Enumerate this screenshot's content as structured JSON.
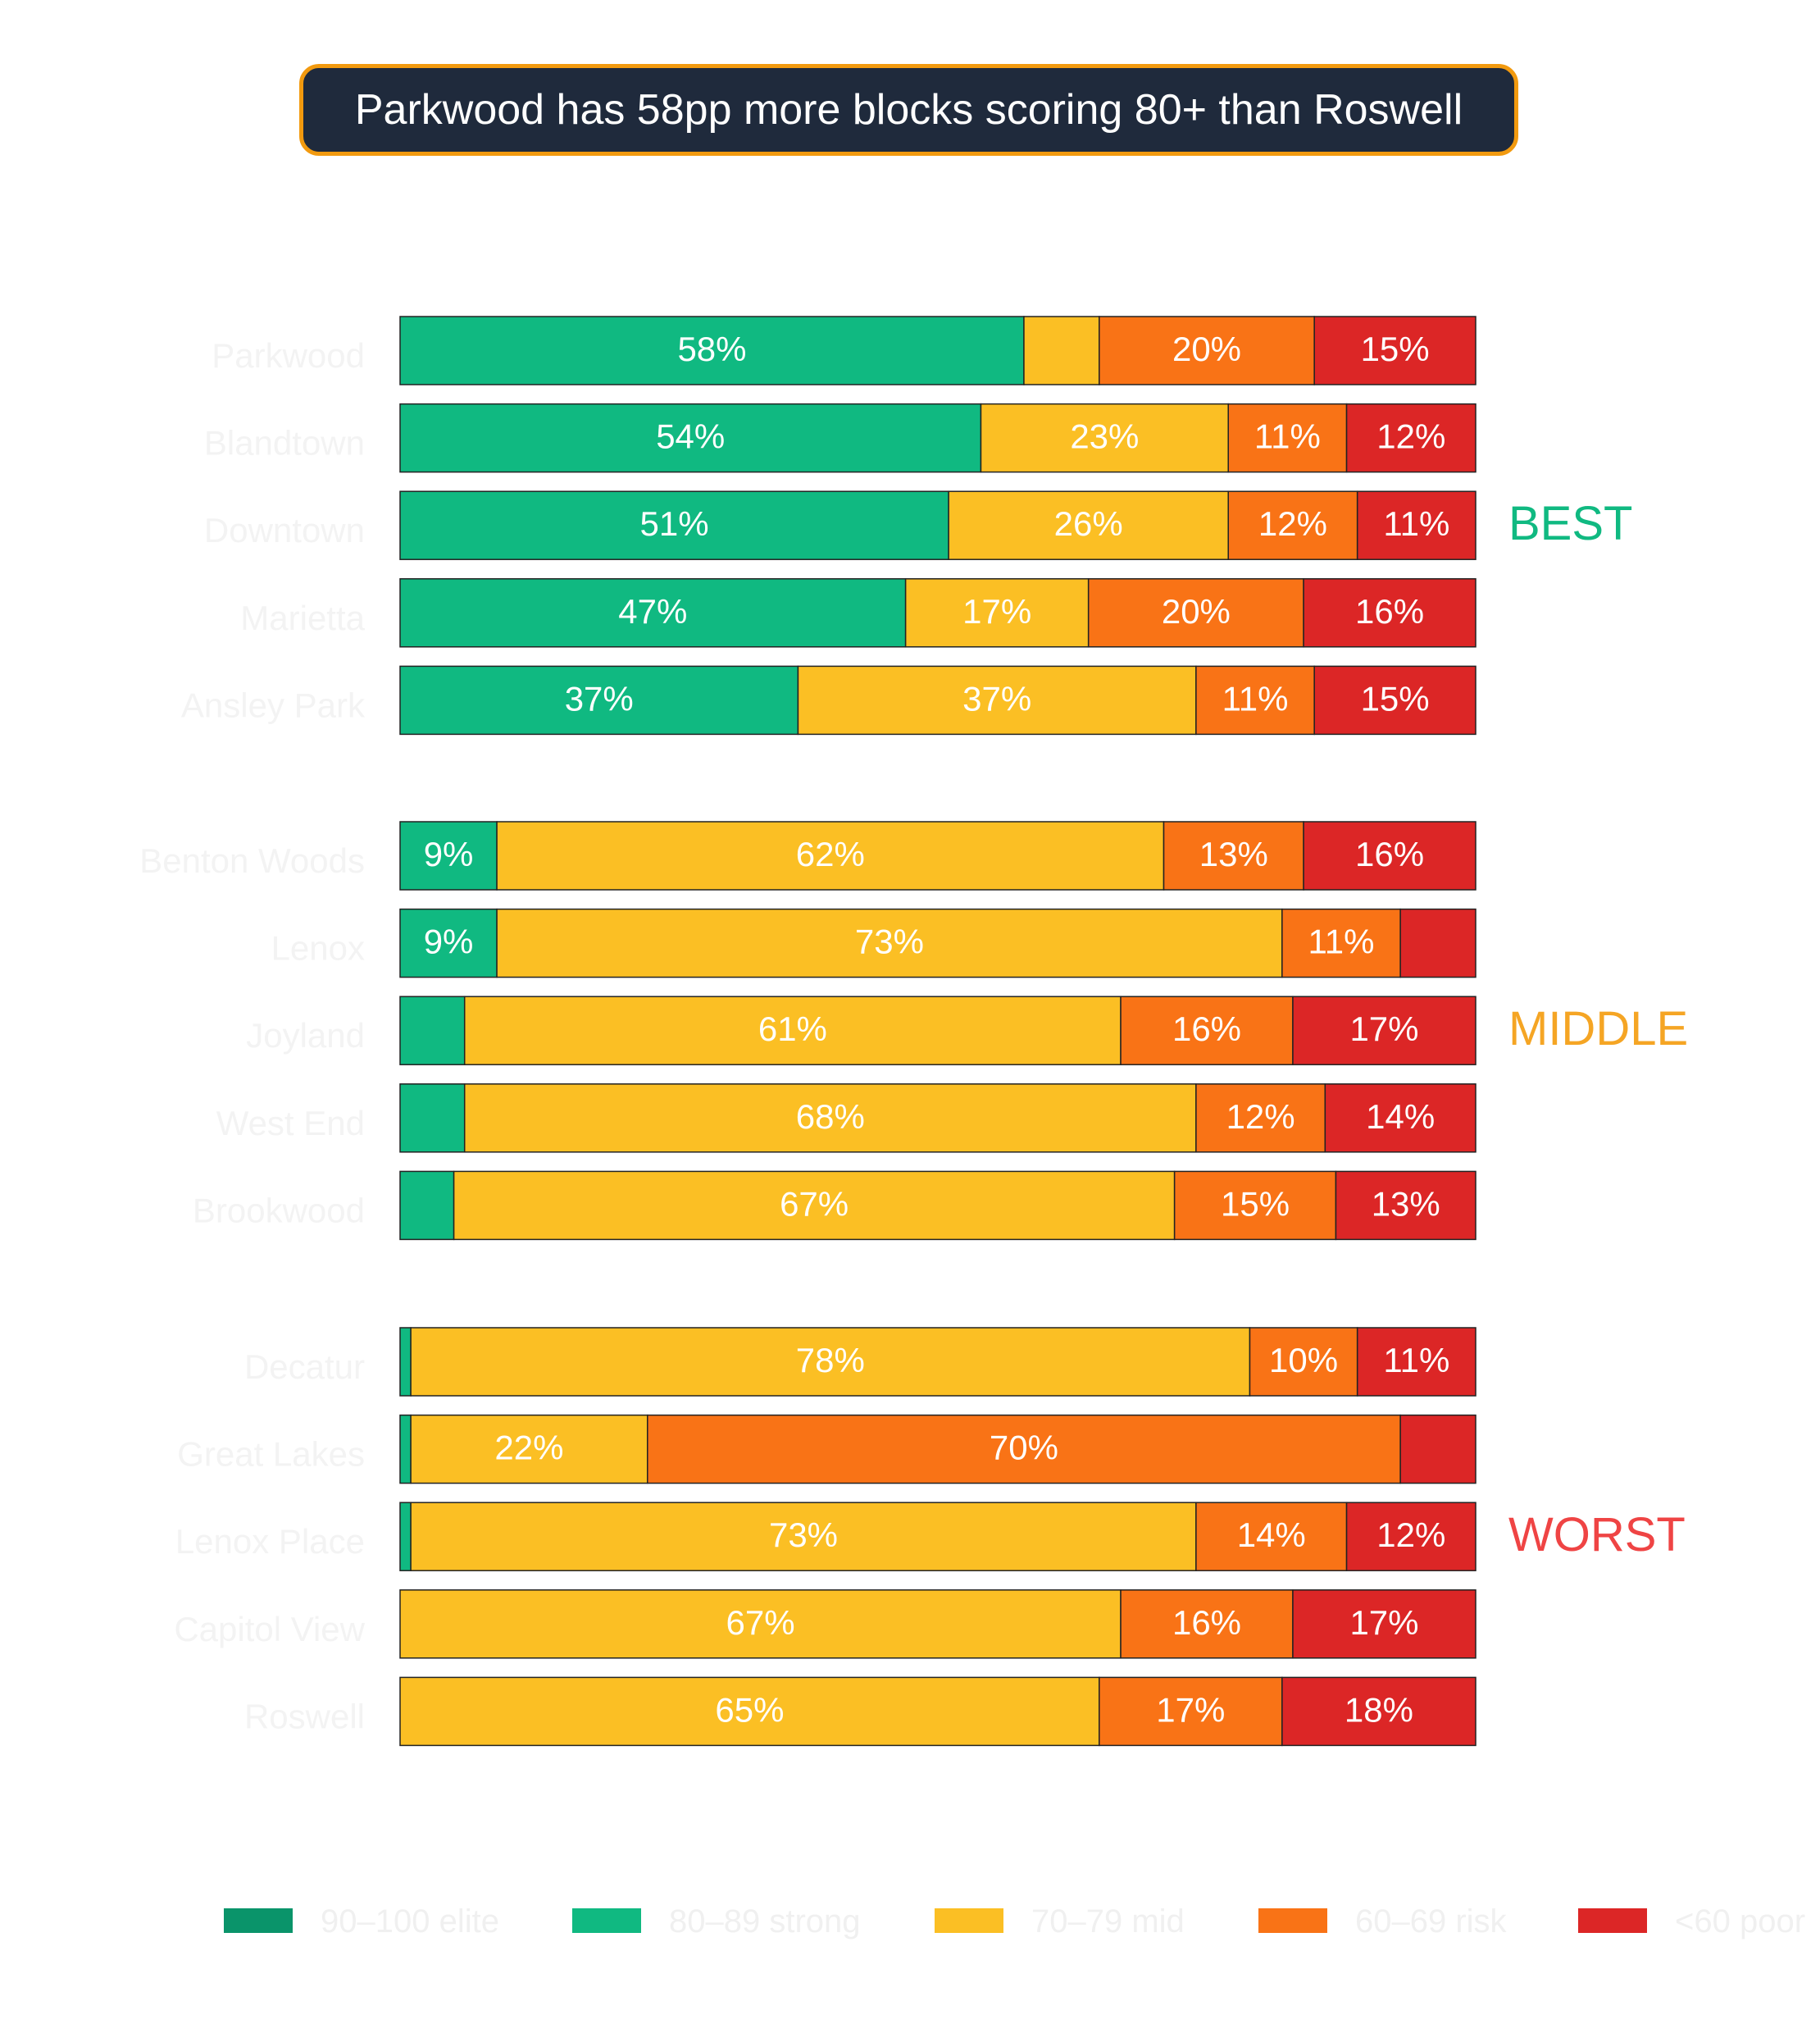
{
  "title": "Parkwood has 58pp more blocks scoring 80+ than Roswell",
  "chart_data": {
    "type": "bar",
    "orientation": "horizontal",
    "stacked": true,
    "xlim": [
      0,
      100
    ],
    "grid": false,
    "legend_placement": "bottom",
    "series": [
      {
        "name": "90–100 elite",
        "color": "#0a946a"
      },
      {
        "name": "80–89 strong",
        "color": "#10b981"
      },
      {
        "name": "70–79 mid",
        "color": "#fbbf24"
      },
      {
        "name": "60–69 risk",
        "color": "#f97316"
      },
      {
        "name": "<60 poor",
        "color": "#dc2626"
      }
    ],
    "groups": [
      {
        "label": "BEST",
        "color": "#10b981",
        "rows": [
          {
            "name": "Parkwood",
            "values": [
              0,
              58,
              7,
              20,
              15
            ],
            "labels": [
              "",
              "58%",
              "",
              "20%",
              "15%"
            ]
          },
          {
            "name": "Blandtown",
            "values": [
              0,
              54,
              23,
              11,
              12
            ],
            "labels": [
              "",
              "54%",
              "23%",
              "11%",
              "12%"
            ]
          },
          {
            "name": "Downtown",
            "values": [
              0,
              51,
              26,
              12,
              11
            ],
            "labels": [
              "",
              "51%",
              "26%",
              "12%",
              "11%"
            ]
          },
          {
            "name": "Marietta",
            "values": [
              0,
              47,
              17,
              20,
              16
            ],
            "labels": [
              "",
              "47%",
              "17%",
              "20%",
              "16%"
            ]
          },
          {
            "name": "Ansley Park",
            "values": [
              0,
              37,
              37,
              11,
              15
            ],
            "labels": [
              "",
              "37%",
              "37%",
              "11%",
              "15%"
            ]
          }
        ]
      },
      {
        "label": "MIDDLE",
        "color": "#f5a524",
        "rows": [
          {
            "name": "Benton Woods",
            "values": [
              0,
              9,
              62,
              13,
              16
            ],
            "labels": [
              "",
              "9%",
              "62%",
              "13%",
              "16%"
            ]
          },
          {
            "name": "Lenox",
            "values": [
              0,
              9,
              73,
              11,
              7
            ],
            "labels": [
              "",
              "9%",
              "73%",
              "11%",
              ""
            ]
          },
          {
            "name": "Joyland",
            "values": [
              0,
              6,
              61,
              16,
              17
            ],
            "labels": [
              "",
              "",
              "61%",
              "16%",
              "17%"
            ]
          },
          {
            "name": "West End",
            "values": [
              0,
              6,
              68,
              12,
              14
            ],
            "labels": [
              "",
              "",
              "68%",
              "12%",
              "14%"
            ]
          },
          {
            "name": "Brookwood",
            "values": [
              0,
              5,
              67,
              15,
              13
            ],
            "labels": [
              "",
              "",
              "67%",
              "15%",
              "13%"
            ]
          }
        ]
      },
      {
        "label": "WORST",
        "color": "#ef4444",
        "rows": [
          {
            "name": "Decatur",
            "values": [
              0,
              1,
              78,
              10,
              11
            ],
            "labels": [
              "",
              "",
              "78%",
              "10%",
              "11%"
            ]
          },
          {
            "name": "Great Lakes",
            "values": [
              0,
              1,
              22,
              70,
              7
            ],
            "labels": [
              "",
              "",
              "22%",
              "70%",
              ""
            ]
          },
          {
            "name": "Lenox Place",
            "values": [
              0,
              1,
              73,
              14,
              12
            ],
            "labels": [
              "",
              "",
              "73%",
              "14%",
              "12%"
            ]
          },
          {
            "name": "Capitol View",
            "values": [
              0,
              0,
              67,
              16,
              17
            ],
            "labels": [
              "",
              "",
              "67%",
              "16%",
              "17%"
            ]
          },
          {
            "name": "Roswell",
            "values": [
              0,
              0,
              65,
              17,
              18
            ],
            "labels": [
              "",
              "",
              "65%",
              "17%",
              "18%"
            ]
          }
        ]
      }
    ]
  }
}
